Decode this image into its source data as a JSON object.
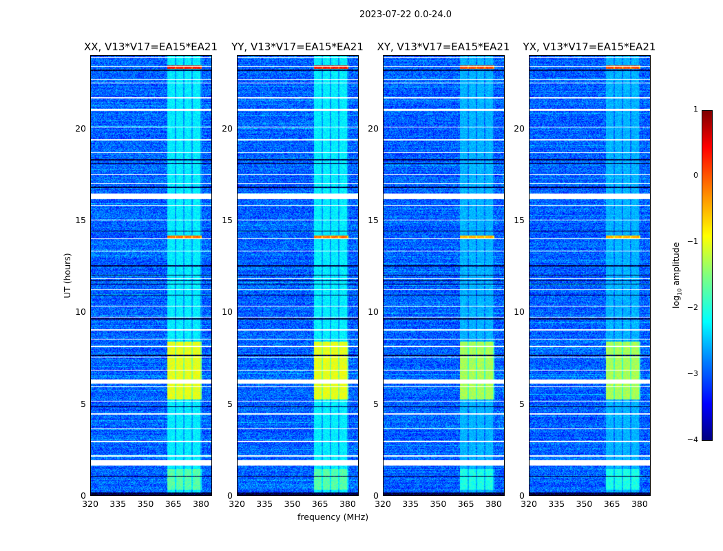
{
  "chart_data": {
    "type": "heatmap",
    "title": "2023-07-22 0.0-24.0",
    "xlabel": "frequency (MHz)",
    "ylabel": "UT (hours)",
    "xlim": [
      320,
      386
    ],
    "ylim": [
      0,
      24
    ],
    "xticks": [
      "320",
      "335",
      "350",
      "365",
      "380"
    ],
    "yticks": [
      "0",
      "5",
      "10",
      "15",
      "20"
    ],
    "panels": [
      {
        "title": "XX, V13*V17=EA15*EA21"
      },
      {
        "title": "YY, V13*V17=EA15*EA21"
      },
      {
        "title": "XY, V13*V17=EA15*EA21"
      },
      {
        "title": "YX, V13*V17=EA15*EA21"
      }
    ],
    "colorbar": {
      "label": "log10 amplitude",
      "label_main": "log",
      "label_sub": "10",
      "label_rest": " amplitude",
      "range": [
        -4,
        1
      ],
      "ticks": [
        "1",
        "0",
        "−1",
        "−2",
        "−3",
        "−4"
      ],
      "colormap": "jet"
    },
    "background_log_amplitude": -2.9,
    "rfi_band_mhz": [
      362,
      381
    ],
    "rfi_subbands_mhz": [
      [
        362,
        366
      ],
      [
        367,
        370.5
      ],
      [
        371.5,
        375
      ],
      [
        376,
        380
      ]
    ],
    "rfi_strong_hours": [
      [
        23.3,
        23.5,
        0.3
      ],
      [
        14.05,
        14.2,
        -0.2
      ],
      [
        5.2,
        8.4,
        -1.0
      ],
      [
        0.3,
        1.4,
        -1.7
      ]
    ],
    "flagged_hours": [
      [
        1.6,
        1.9
      ],
      [
        2.1,
        2.15
      ],
      [
        2.9,
        2.95
      ],
      [
        3.6,
        3.65
      ],
      [
        4.4,
        4.45
      ],
      [
        5.1,
        5.15
      ],
      [
        5.9,
        5.95
      ],
      [
        6.1,
        6.3
      ],
      [
        6.8,
        6.85
      ],
      [
        7.5,
        7.55
      ],
      [
        8.1,
        8.15
      ],
      [
        8.5,
        8.55
      ],
      [
        9.0,
        9.05
      ],
      [
        9.7,
        9.75
      ],
      [
        10.3,
        10.35
      ],
      [
        11.2,
        11.25
      ],
      [
        11.8,
        11.85
      ],
      [
        13.3,
        13.35
      ],
      [
        14.0,
        14.03
      ],
      [
        15.0,
        15.05
      ],
      [
        15.8,
        15.85
      ],
      [
        16.2,
        16.5
      ],
      [
        17.0,
        17.05
      ],
      [
        17.5,
        17.55
      ],
      [
        18.7,
        18.75
      ],
      [
        19.4,
        19.45
      ],
      [
        20.1,
        20.15
      ],
      [
        21.0,
        21.1
      ],
      [
        21.7,
        21.75
      ],
      [
        22.5,
        22.55
      ],
      [
        22.7,
        22.75
      ],
      [
        23.4,
        23.45
      ],
      [
        23.9,
        23.95
      ]
    ],
    "nodata_hours": [
      [
        0,
        0.12
      ],
      [
        1.0,
        1.05
      ],
      [
        4.8,
        4.85
      ],
      [
        7.6,
        7.65
      ],
      [
        9.6,
        9.65
      ],
      [
        10.9,
        10.95
      ],
      [
        11.5,
        11.55
      ],
      [
        11.7,
        11.75
      ],
      [
        12.0,
        12.05
      ],
      [
        12.5,
        12.55
      ],
      [
        14.4,
        14.45
      ],
      [
        16.8,
        16.85
      ],
      [
        18.1,
        18.15
      ],
      [
        18.3,
        18.35
      ],
      [
        23.2,
        23.25
      ]
    ]
  }
}
